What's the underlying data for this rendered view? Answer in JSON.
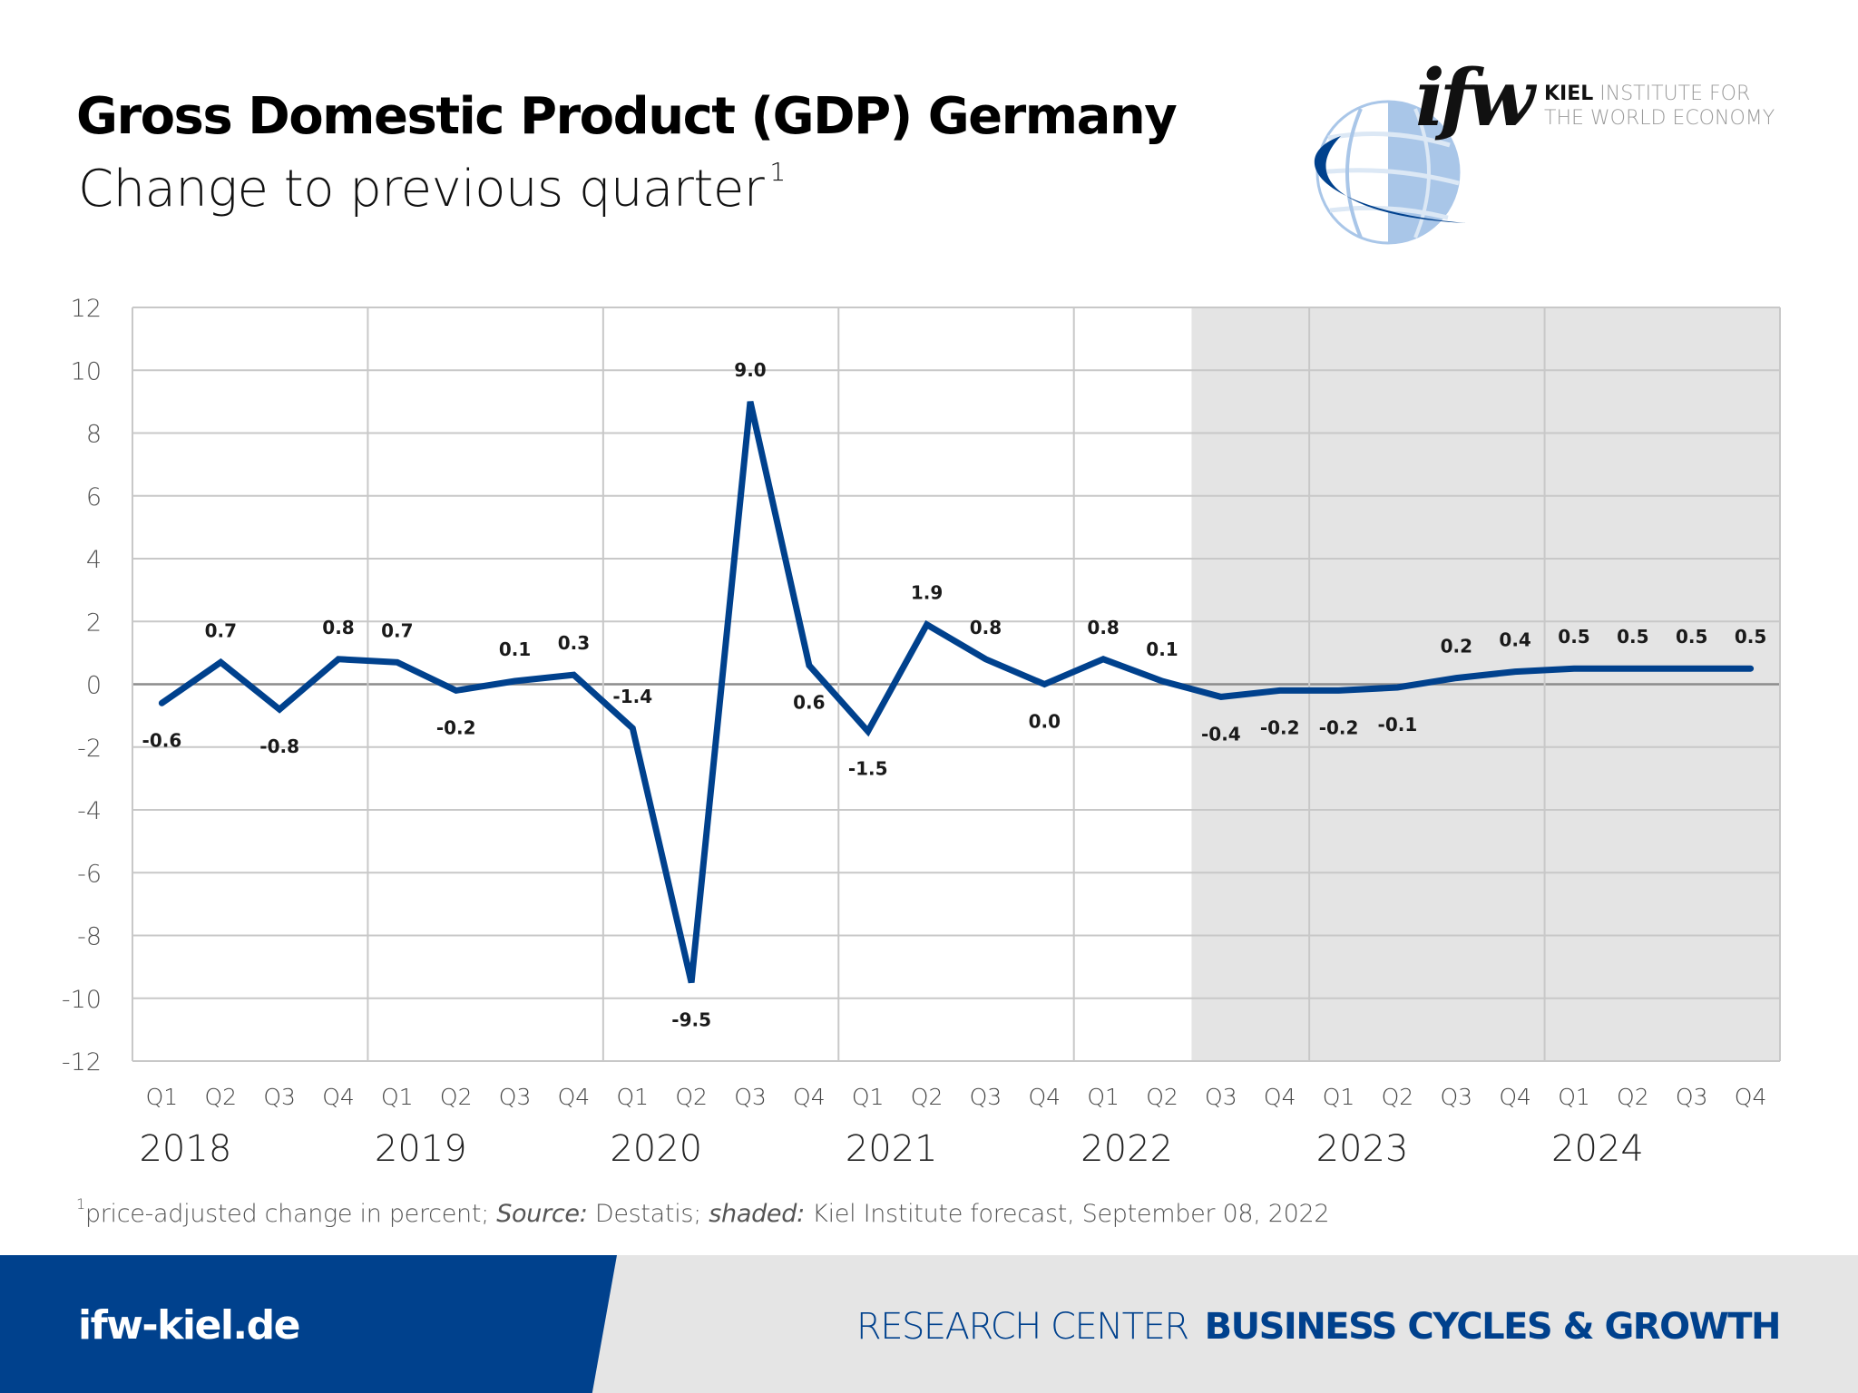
{
  "header": {
    "title": "Gross Domestic Product (GDP) Germany",
    "subtitle": "Change to previous quarter",
    "subtitle_footnote_marker": "1"
  },
  "logo": {
    "mark": "ifw",
    "name_bold": "KIEL",
    "name_line1_rest": " INSTITUTE FOR",
    "name_line2": "THE WORLD ECONOMY",
    "icon": "globe-swoosh-icon"
  },
  "footnote": {
    "marker": "1",
    "text_1": "price-adjusted change in percent; ",
    "source_label": "Source:",
    "source_value": " Destatis; ",
    "shaded_label": "shaded:",
    "shaded_value": " Kiel Institute forecast, September 08, 2022"
  },
  "footer": {
    "url": "ifw-kiel.de",
    "research_center_label": "RESEARCH CENTER",
    "research_center_name": "BUSINESS CYCLES & GROWTH"
  },
  "colors": {
    "line": "#00418d",
    "forecast_shade": "#e4e4e4",
    "grid": "#c8c8c8",
    "footer_blue": "#00418d",
    "footer_gray": "#e5e5e5"
  },
  "chart_data": {
    "type": "line",
    "title": "Gross Domestic Product (GDP) Germany",
    "subtitle": "Change to previous quarter",
    "xlabel": "",
    "ylabel": "",
    "ylim": [
      -12,
      12
    ],
    "yticks": [
      12,
      10,
      8,
      6,
      4,
      2,
      0,
      -2,
      -4,
      -6,
      -8,
      -10,
      -12
    ],
    "grid": true,
    "legend": "none",
    "years": [
      "2018",
      "2019",
      "2020",
      "2021",
      "2022",
      "2023",
      "2024"
    ],
    "quarters": [
      "Q1",
      "Q2",
      "Q3",
      "Q4"
    ],
    "x": [
      "2018 Q1",
      "2018 Q2",
      "2018 Q3",
      "2018 Q4",
      "2019 Q1",
      "2019 Q2",
      "2019 Q3",
      "2019 Q4",
      "2020 Q1",
      "2020 Q2",
      "2020 Q3",
      "2020 Q4",
      "2021 Q1",
      "2021 Q2",
      "2021 Q3",
      "2021 Q4",
      "2022 Q1",
      "2022 Q2",
      "2022 Q3",
      "2022 Q4",
      "2023 Q1",
      "2023 Q2",
      "2023 Q3",
      "2023 Q4",
      "2024 Q1",
      "2024 Q2",
      "2024 Q3",
      "2024 Q4"
    ],
    "series": [
      {
        "name": "GDP change to previous quarter (%)",
        "values": [
          -0.6,
          0.7,
          -0.8,
          0.8,
          0.7,
          -0.2,
          0.1,
          0.3,
          -1.4,
          -9.5,
          9.0,
          0.6,
          -1.5,
          1.9,
          0.8,
          0.0,
          0.8,
          0.1,
          -0.4,
          -0.2,
          -0.2,
          -0.1,
          0.2,
          0.4,
          0.5,
          0.5,
          0.5,
          0.5
        ],
        "labels": [
          "-0.6",
          "0.7",
          "-0.8",
          "0.8",
          "0.7",
          "-0.2",
          "0.1",
          "0.3",
          "-1.4",
          "-9.5",
          "9.0",
          "0.6",
          "-1.5",
          "1.9",
          "0.8",
          "0.0",
          "0.8",
          "0.1",
          "-0.4",
          "-0.2",
          "-0.2",
          "-0.1",
          "0.2",
          "0.4",
          "0.5",
          "0.5",
          "0.5",
          "0.5"
        ],
        "label_position": [
          "below",
          "above",
          "below",
          "above",
          "above",
          "below",
          "above",
          "above",
          "above",
          "below",
          "above",
          "below",
          "below",
          "above",
          "above",
          "below",
          "above",
          "above",
          "below",
          "below",
          "below",
          "below",
          "above",
          "above",
          "above",
          "above",
          "above",
          "above"
        ]
      }
    ],
    "forecast_shaded_from": "2022 Q3",
    "annotations": [
      "shaded: Kiel Institute forecast, September 08, 2022"
    ]
  }
}
